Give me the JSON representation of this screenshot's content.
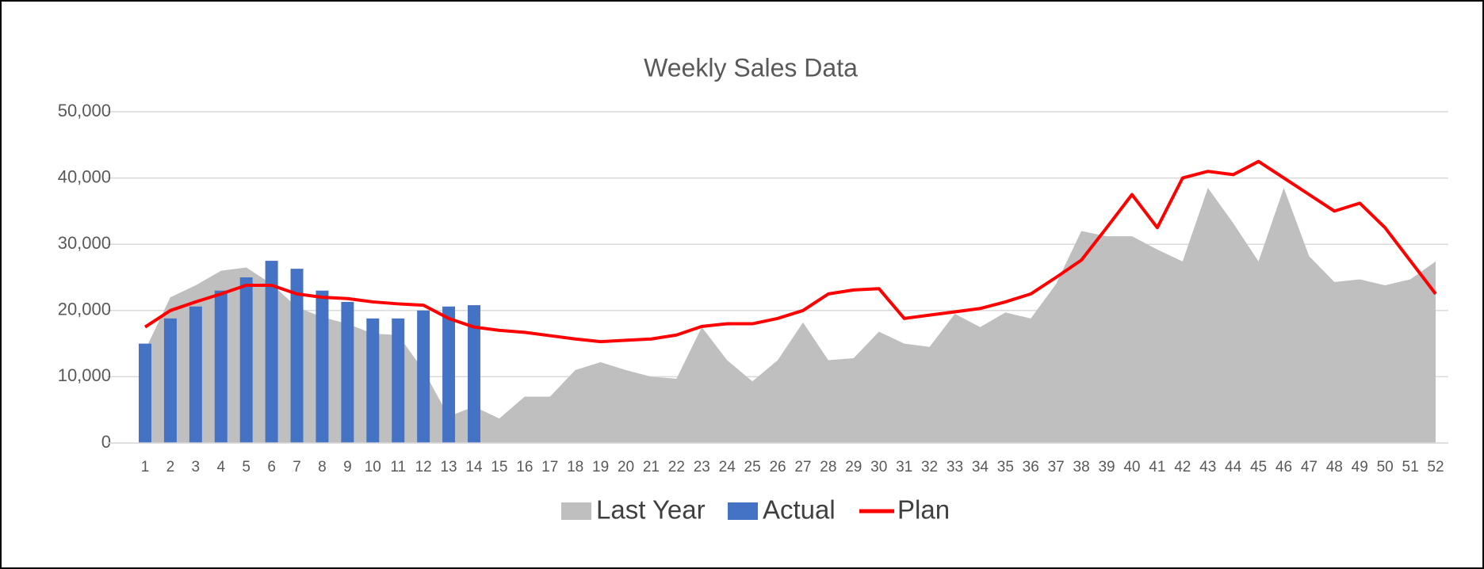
{
  "chart_data": {
    "type": "combo",
    "title": "Weekly Sales Data",
    "categories": [
      "1",
      "2",
      "3",
      "4",
      "5",
      "6",
      "7",
      "8",
      "9",
      "10",
      "11",
      "12",
      "13",
      "14",
      "15",
      "16",
      "17",
      "18",
      "19",
      "20",
      "21",
      "22",
      "23",
      "24",
      "25",
      "26",
      "27",
      "28",
      "29",
      "30",
      "31",
      "32",
      "33",
      "34",
      "35",
      "36",
      "37",
      "38",
      "39",
      "40",
      "41",
      "42",
      "43",
      "44",
      "45",
      "46",
      "47",
      "48",
      "49",
      "50",
      "51",
      "52"
    ],
    "series": [
      {
        "name": "Last Year",
        "type": "area",
        "color": "#bfbfbf",
        "values": [
          14000,
          22000,
          23800,
          26000,
          26500,
          24000,
          20500,
          19000,
          18000,
          16500,
          16300,
          11000,
          4000,
          5500,
          3700,
          7000,
          7000,
          11000,
          12200,
          11000,
          10000,
          9700,
          17500,
          12500,
          9300,
          12500,
          18200,
          12500,
          12800,
          16800,
          15000,
          14500,
          19500,
          17500,
          19700,
          18800,
          24000,
          32000,
          31200,
          31200,
          29200,
          27400,
          38500,
          33200,
          27400,
          38500,
          28200,
          24300,
          24700,
          23800,
          24700,
          27400
        ]
      },
      {
        "name": "Actual",
        "type": "bar",
        "color": "#4472c4",
        "values": [
          15000,
          18800,
          20600,
          23000,
          25000,
          27500,
          26300,
          23000,
          21300,
          18800,
          18800,
          20000,
          20600,
          20800,
          null,
          null,
          null,
          null,
          null,
          null,
          null,
          null,
          null,
          null,
          null,
          null,
          null,
          null,
          null,
          null,
          null,
          null,
          null,
          null,
          null,
          null,
          null,
          null,
          null,
          null,
          null,
          null,
          null,
          null,
          null,
          null,
          null,
          null,
          null,
          null,
          null,
          null
        ]
      },
      {
        "name": "Plan",
        "type": "line",
        "color": "#ff0000",
        "values": [
          17500,
          20000,
          21300,
          22500,
          23800,
          23800,
          22500,
          22000,
          21800,
          21300,
          21000,
          20800,
          18800,
          17500,
          17000,
          16700,
          16200,
          15700,
          15300,
          15500,
          15700,
          16300,
          17600,
          18000,
          18000,
          18800,
          20000,
          22500,
          23100,
          23300,
          18800,
          19300,
          19800,
          20300,
          21300,
          22500,
          25000,
          27600,
          32500,
          37500,
          32500,
          40000,
          41000,
          40500,
          42500,
          40000,
          37500,
          35000,
          36200,
          32500,
          27500,
          22500
        ]
      }
    ],
    "ylim": [
      0,
      50000
    ],
    "yticks": [
      0,
      {
        "value": 10000,
        "label": "10,000"
      },
      {
        "value": 20000,
        "label": "20,000"
      },
      {
        "value": 30000,
        "label": "30,000"
      },
      {
        "value": 40000,
        "label": "40,000"
      },
      {
        "value": 50000,
        "label": "50,000"
      }
    ],
    "grid": true,
    "legend": "bottom"
  }
}
